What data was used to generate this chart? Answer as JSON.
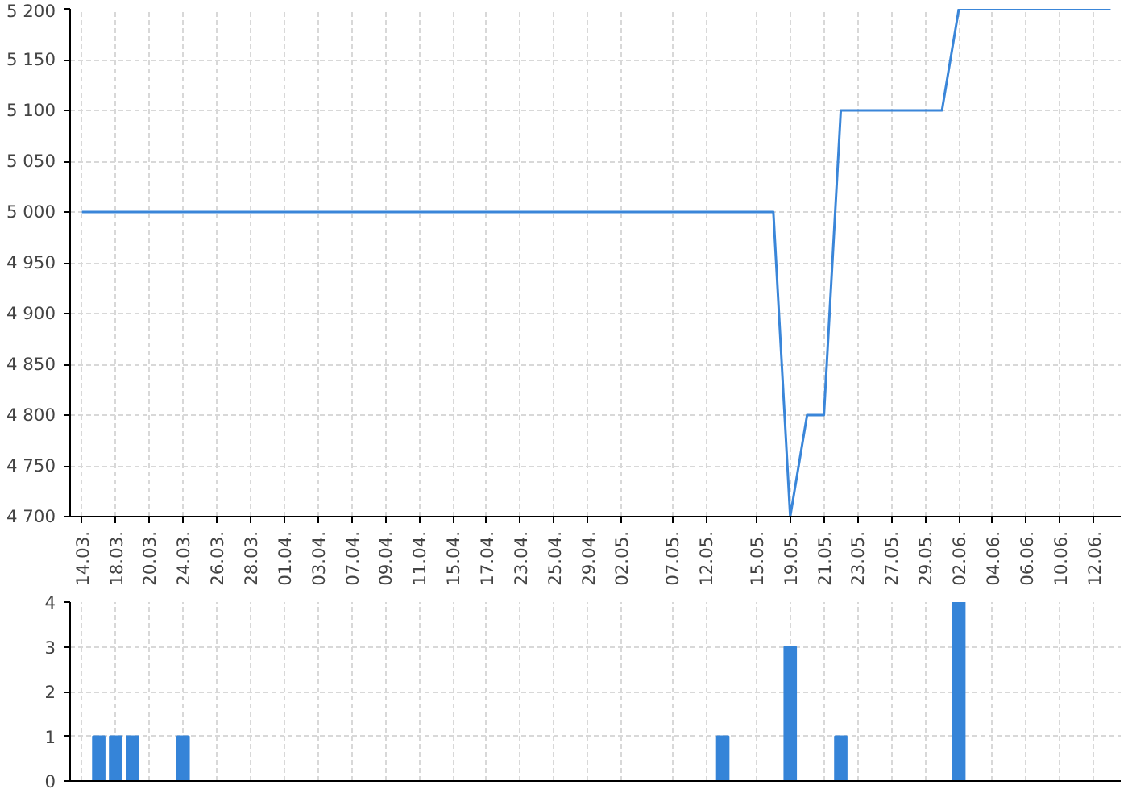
{
  "chart_data": [
    {
      "type": "line",
      "categories": [
        "14.03.",
        null,
        "18.03.",
        null,
        "20.03.",
        null,
        "24.03.",
        null,
        "26.03.",
        null,
        "28.03.",
        null,
        "01.04.",
        null,
        "03.04.",
        null,
        "07.04.",
        null,
        "09.04.",
        null,
        "11.04.",
        null,
        "15.04.",
        null,
        "17.04.",
        null,
        "23.04.",
        null,
        "25.04.",
        null,
        "29.04.",
        null,
        "02.05.",
        null,
        null,
        "07.05.",
        null,
        "12.05.",
        null,
        null,
        "15.05.",
        null,
        "19.05.",
        null,
        "21.05.",
        null,
        "23.05.",
        null,
        "27.05.",
        null,
        "29.05.",
        null,
        "02.06.",
        null,
        "04.06.",
        null,
        "06.06.",
        null,
        "10.06.",
        null,
        "12.06.",
        null
      ],
      "series": [
        {
          "color": "#3a86d9",
          "values": [
            5000,
            5000,
            5000,
            5000,
            5000,
            5000,
            5000,
            5000,
            5000,
            5000,
            5000,
            5000,
            5000,
            5000,
            5000,
            5000,
            5000,
            5000,
            5000,
            5000,
            5000,
            5000,
            5000,
            5000,
            5000,
            5000,
            5000,
            5000,
            5000,
            5000,
            5000,
            5000,
            5000,
            5000,
            5000,
            5000,
            5000,
            5000,
            5000,
            5000,
            5000,
            5000,
            4700,
            4800,
            4800,
            5100,
            5100,
            5100,
            5100,
            5100,
            5100,
            5100,
            5200,
            5200,
            5200,
            5200,
            5200,
            5200,
            5200,
            5200,
            5200,
            5200
          ]
        }
      ],
      "ylim": [
        4700,
        5200
      ],
      "yticks": [
        {
          "value": 4700,
          "label": "4 700"
        },
        {
          "value": 4750,
          "label": "4 750"
        },
        {
          "value": 4800,
          "label": "4 800"
        },
        {
          "value": 4850,
          "label": "4 850"
        },
        {
          "value": 4900,
          "label": "4 900"
        },
        {
          "value": 4950,
          "label": "4 950"
        },
        {
          "value": 5000,
          "label": "5 000"
        },
        {
          "value": 5050,
          "label": "5 050"
        },
        {
          "value": 5100,
          "label": "5 100"
        },
        {
          "value": 5150,
          "label": "5 150"
        },
        {
          "value": 5200,
          "label": "5 200"
        }
      ],
      "grid": true
    },
    {
      "type": "bar",
      "categories": [
        "14.03.",
        null,
        "18.03.",
        null,
        "20.03.",
        null,
        "24.03.",
        null,
        "26.03.",
        null,
        "28.03.",
        null,
        "01.04.",
        null,
        "03.04.",
        null,
        "07.04.",
        null,
        "09.04.",
        null,
        "11.04.",
        null,
        "15.04.",
        null,
        "17.04.",
        null,
        "23.04.",
        null,
        "25.04.",
        null,
        "29.04.",
        null,
        "02.05.",
        null,
        null,
        "07.05.",
        null,
        "12.05.",
        null,
        null,
        "15.05.",
        null,
        "19.05.",
        null,
        "21.05.",
        null,
        "23.05.",
        null,
        "27.05.",
        null,
        "29.05.",
        null,
        "02.06.",
        null,
        "04.06.",
        null,
        "06.06.",
        null,
        "10.06.",
        null,
        "12.06.",
        null
      ],
      "series": [
        {
          "color": "#3584d8",
          "values": [
            0,
            1,
            1,
            1,
            0,
            0,
            1,
            0,
            0,
            0,
            0,
            0,
            0,
            0,
            0,
            0,
            0,
            0,
            0,
            0,
            0,
            0,
            0,
            0,
            0,
            0,
            0,
            0,
            0,
            0,
            0,
            0,
            0,
            0,
            0,
            0,
            0,
            0,
            1,
            0,
            0,
            0,
            3,
            0,
            0,
            1,
            0,
            0,
            0,
            0,
            0,
            0,
            4,
            0,
            0,
            0,
            0,
            0,
            0,
            0,
            0,
            0
          ]
        }
      ],
      "ylim": [
        0,
        4
      ],
      "yticks": [
        0,
        1,
        2,
        3,
        4
      ],
      "grid": true,
      "tick_labels": "y"
    }
  ]
}
